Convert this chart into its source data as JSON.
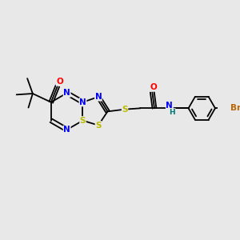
{
  "bg_color": "#e8e8e8",
  "bond_color": "#000000",
  "N_color": "#0000ff",
  "S_color": "#bbbb00",
  "O_color": "#ff0000",
  "Br_color": "#bb6600",
  "H_color": "#007777",
  "line_width": 1.3,
  "font_size": 7.5,
  "xlim": [
    0,
    10
  ],
  "ylim": [
    0,
    10
  ]
}
